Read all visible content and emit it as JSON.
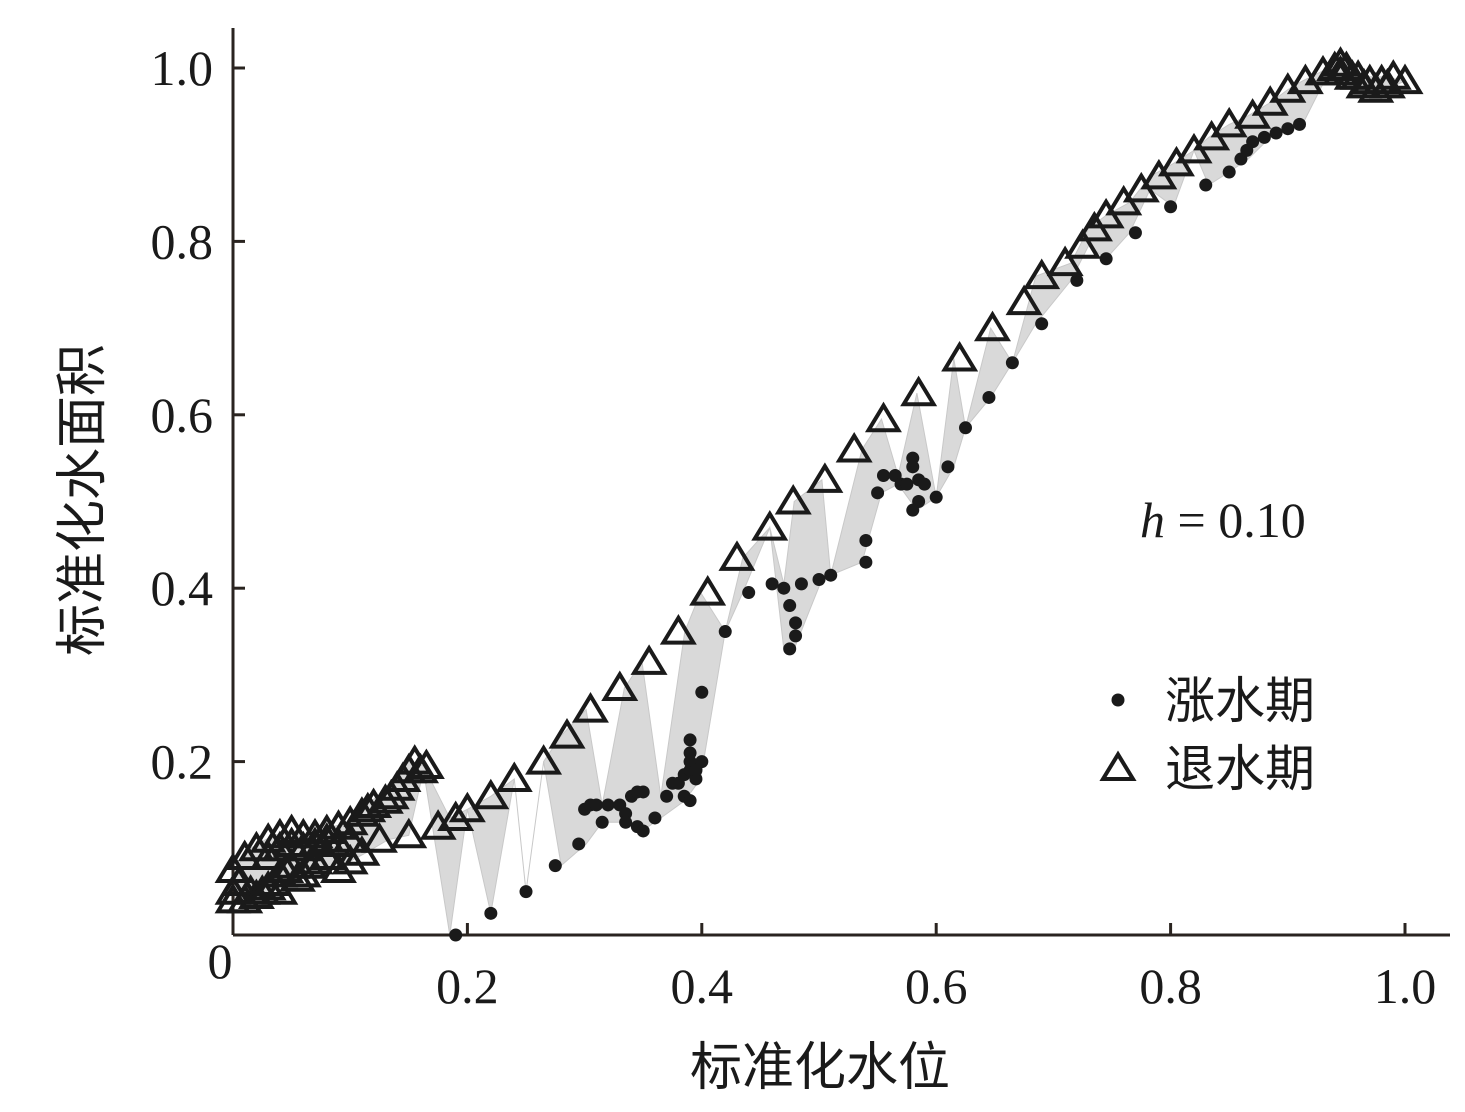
{
  "chart_data": {
    "type": "scatter",
    "xlabel": "标准化水位",
    "ylabel": "标准化水面积",
    "xlim": [
      0,
      1.03
    ],
    "ylim": [
      0,
      1.04
    ],
    "x_ticks": [
      {
        "value": 0.2,
        "label": "0.2"
      },
      {
        "value": 0.4,
        "label": "0.4"
      },
      {
        "value": 0.6,
        "label": "0.6"
      },
      {
        "value": 0.8,
        "label": "0.8"
      },
      {
        "value": 1.0,
        "label": "1.0"
      }
    ],
    "y_ticks": [
      {
        "value": 0.2,
        "label": "0.2"
      },
      {
        "value": 0.4,
        "label": "0.4"
      },
      {
        "value": 0.6,
        "label": "0.6"
      },
      {
        "value": 0.8,
        "label": "0.8"
      },
      {
        "value": 1.0,
        "label": "1.0"
      }
    ],
    "origin_label": "0",
    "annotation": {
      "var": "h",
      "text": " = 0.10"
    },
    "legend_position": "right-middle",
    "hull_color": "#d9d9d9",
    "marker_color": "#1a1a1a",
    "series": [
      {
        "name": "涨水期",
        "marker": "dot",
        "points": [
          [
            0.19,
            0.0
          ],
          [
            0.22,
            0.025
          ],
          [
            0.25,
            0.05
          ],
          [
            0.275,
            0.08
          ],
          [
            0.295,
            0.105
          ],
          [
            0.3,
            0.145
          ],
          [
            0.305,
            0.15
          ],
          [
            0.31,
            0.15
          ],
          [
            0.315,
            0.13
          ],
          [
            0.32,
            0.15
          ],
          [
            0.33,
            0.15
          ],
          [
            0.335,
            0.14
          ],
          [
            0.34,
            0.16
          ],
          [
            0.345,
            0.165
          ],
          [
            0.35,
            0.165
          ],
          [
            0.335,
            0.13
          ],
          [
            0.345,
            0.125
          ],
          [
            0.35,
            0.12
          ],
          [
            0.36,
            0.135
          ],
          [
            0.37,
            0.16
          ],
          [
            0.375,
            0.175
          ],
          [
            0.38,
            0.175
          ],
          [
            0.385,
            0.185
          ],
          [
            0.39,
            0.19
          ],
          [
            0.39,
            0.2
          ],
          [
            0.395,
            0.18
          ],
          [
            0.395,
            0.19
          ],
          [
            0.385,
            0.16
          ],
          [
            0.39,
            0.155
          ],
          [
            0.39,
            0.21
          ],
          [
            0.39,
            0.225
          ],
          [
            0.4,
            0.2
          ],
          [
            0.4,
            0.28
          ],
          [
            0.42,
            0.35
          ],
          [
            0.44,
            0.395
          ],
          [
            0.46,
            0.405
          ],
          [
            0.47,
            0.4
          ],
          [
            0.475,
            0.38
          ],
          [
            0.48,
            0.36
          ],
          [
            0.48,
            0.345
          ],
          [
            0.475,
            0.33
          ],
          [
            0.485,
            0.405
          ],
          [
            0.5,
            0.41
          ],
          [
            0.51,
            0.415
          ],
          [
            0.54,
            0.43
          ],
          [
            0.54,
            0.455
          ],
          [
            0.55,
            0.51
          ],
          [
            0.555,
            0.53
          ],
          [
            0.565,
            0.53
          ],
          [
            0.57,
            0.52
          ],
          [
            0.575,
            0.52
          ],
          [
            0.58,
            0.54
          ],
          [
            0.58,
            0.55
          ],
          [
            0.585,
            0.525
          ],
          [
            0.585,
            0.5
          ],
          [
            0.58,
            0.49
          ],
          [
            0.59,
            0.52
          ],
          [
            0.6,
            0.505
          ],
          [
            0.61,
            0.54
          ],
          [
            0.625,
            0.585
          ],
          [
            0.645,
            0.62
          ],
          [
            0.665,
            0.66
          ],
          [
            0.69,
            0.705
          ],
          [
            0.72,
            0.755
          ],
          [
            0.745,
            0.78
          ],
          [
            0.77,
            0.81
          ],
          [
            0.8,
            0.84
          ],
          [
            0.83,
            0.865
          ],
          [
            0.85,
            0.88
          ],
          [
            0.86,
            0.895
          ],
          [
            0.865,
            0.905
          ],
          [
            0.87,
            0.915
          ],
          [
            0.88,
            0.92
          ],
          [
            0.89,
            0.925
          ],
          [
            0.9,
            0.93
          ],
          [
            0.91,
            0.935
          ]
        ]
      },
      {
        "name": "退水期",
        "marker": "open-triangle",
        "points": [
          [
            0.0,
            0.04
          ],
          [
            0.0,
            0.05
          ],
          [
            0.005,
            0.06
          ],
          [
            0.01,
            0.04
          ],
          [
            0.015,
            0.05
          ],
          [
            0.02,
            0.045
          ],
          [
            0.025,
            0.05
          ],
          [
            0.03,
            0.055
          ],
          [
            0.035,
            0.06
          ],
          [
            0.04,
            0.07
          ],
          [
            0.04,
            0.05
          ],
          [
            0.045,
            0.075
          ],
          [
            0.05,
            0.08
          ],
          [
            0.055,
            0.065
          ],
          [
            0.06,
            0.07
          ],
          [
            0.065,
            0.08
          ],
          [
            0.07,
            0.085
          ],
          [
            0.08,
            0.09
          ],
          [
            0.09,
            0.075
          ],
          [
            0.1,
            0.085
          ],
          [
            0.11,
            0.095
          ],
          [
            0.125,
            0.11
          ],
          [
            0.15,
            0.115
          ],
          [
            0.175,
            0.125
          ],
          [
            0.19,
            0.135
          ],
          [
            0.2,
            0.145
          ],
          [
            0.22,
            0.16
          ],
          [
            0.24,
            0.18
          ],
          [
            0.265,
            0.2
          ],
          [
            0.285,
            0.23
          ],
          [
            0.305,
            0.26
          ],
          [
            0.33,
            0.285
          ],
          [
            0.355,
            0.315
          ],
          [
            0.38,
            0.35
          ],
          [
            0.405,
            0.395
          ],
          [
            0.43,
            0.435
          ],
          [
            0.458,
            0.47
          ],
          [
            0.478,
            0.5
          ],
          [
            0.505,
            0.525
          ],
          [
            0.53,
            0.56
          ],
          [
            0.555,
            0.595
          ],
          [
            0.585,
            0.625
          ],
          [
            0.62,
            0.665
          ],
          [
            0.648,
            0.7
          ],
          [
            0.675,
            0.73
          ],
          [
            0.69,
            0.76
          ],
          [
            0.71,
            0.775
          ],
          [
            0.725,
            0.795
          ],
          [
            0.735,
            0.815
          ],
          [
            0.745,
            0.83
          ],
          [
            0.76,
            0.845
          ],
          [
            0.775,
            0.86
          ],
          [
            0.79,
            0.875
          ],
          [
            0.805,
            0.89
          ],
          [
            0.82,
            0.905
          ],
          [
            0.835,
            0.92
          ],
          [
            0.85,
            0.935
          ],
          [
            0.87,
            0.945
          ],
          [
            0.885,
            0.96
          ],
          [
            0.9,
            0.975
          ],
          [
            0.915,
            0.985
          ],
          [
            0.93,
            0.995
          ],
          [
            0.94,
            1.0
          ],
          [
            0.945,
            1.005
          ],
          [
            0.95,
            1.0
          ],
          [
            0.96,
            0.99
          ],
          [
            0.97,
            0.985
          ],
          [
            0.98,
            0.985
          ],
          [
            0.99,
            0.99
          ],
          [
            1.0,
            0.985
          ],
          [
            0.945,
            0.995
          ],
          [
            0.955,
            0.99
          ],
          [
            0.965,
            0.98
          ],
          [
            0.975,
            0.975
          ],
          [
            0.985,
            0.98
          ],
          [
            0.0,
            0.075
          ],
          [
            0.01,
            0.09
          ],
          [
            0.02,
            0.1
          ],
          [
            0.03,
            0.11
          ],
          [
            0.04,
            0.115
          ],
          [
            0.05,
            0.12
          ],
          [
            0.06,
            0.115
          ],
          [
            0.07,
            0.115
          ],
          [
            0.08,
            0.12
          ],
          [
            0.09,
            0.125
          ],
          [
            0.1,
            0.13
          ],
          [
            0.11,
            0.14
          ],
          [
            0.115,
            0.145
          ],
          [
            0.12,
            0.15
          ],
          [
            0.13,
            0.155
          ],
          [
            0.135,
            0.16
          ],
          [
            0.14,
            0.17
          ],
          [
            0.145,
            0.18
          ],
          [
            0.15,
            0.19
          ],
          [
            0.155,
            0.2
          ],
          [
            0.16,
            0.19
          ],
          [
            0.165,
            0.195
          ],
          [
            0.03,
            0.09
          ],
          [
            0.04,
            0.1
          ],
          [
            0.05,
            0.105
          ],
          [
            0.06,
            0.1
          ],
          [
            0.07,
            0.105
          ],
          [
            0.08,
            0.11
          ],
          [
            0.09,
            0.105
          ],
          [
            0.1,
            0.11
          ]
        ]
      }
    ]
  }
}
